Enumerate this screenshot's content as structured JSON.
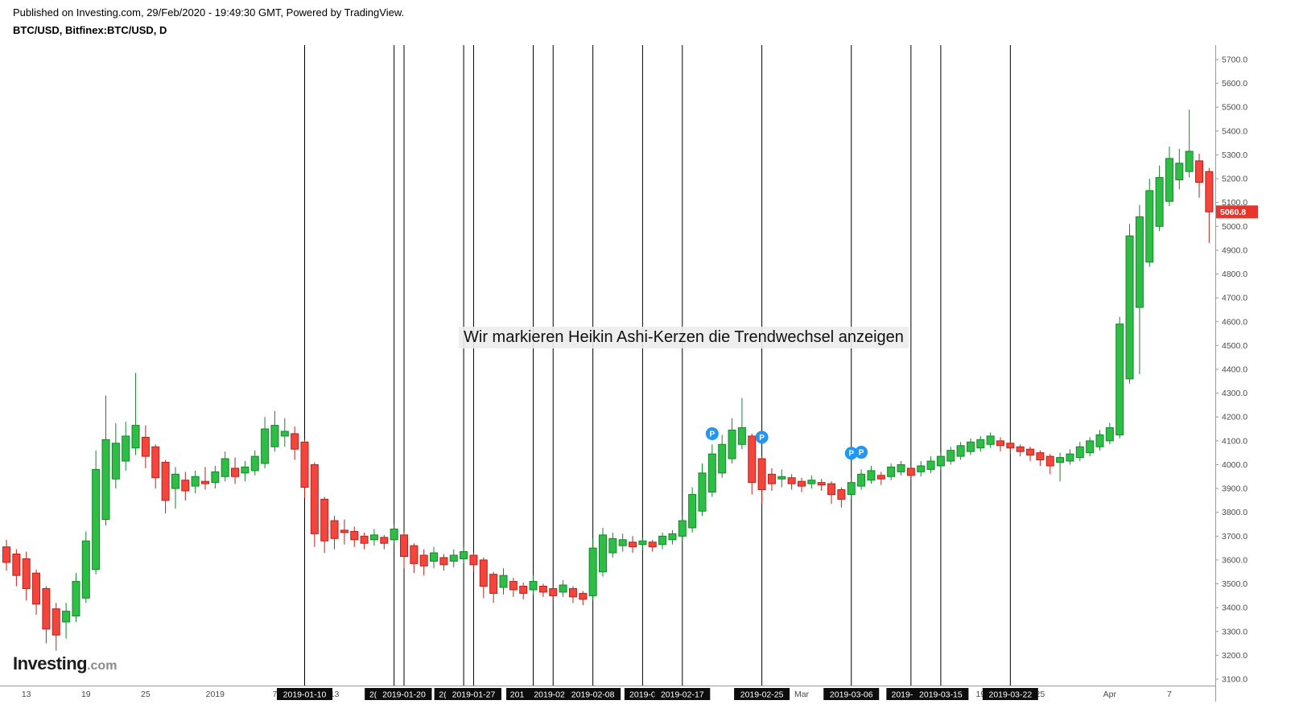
{
  "header": {
    "published_line": "Published on Investing.com, 29/Feb/2020 - 19:49:30 GMT, Powered by TradingView.",
    "symbol_line": "BTC/USD, Bitfinex:BTC/USD, D"
  },
  "annotation": {
    "text": "Wir markieren Heikin Ashi-Kerzen die Trendwechsel anzeigen"
  },
  "logo": {
    "brand": "Investing",
    "suffix": ".com"
  },
  "price_label": {
    "value": "5060.8",
    "color": "#e8342a"
  },
  "colors": {
    "up_fill": "#2ebd45",
    "up_border": "#13862b",
    "down_fill": "#f4453c",
    "down_border": "#b9211b",
    "trend_line": "#000000",
    "axis_text": "#4a4a4a",
    "axis_line": "#999999"
  },
  "chart_data": {
    "type": "candlestick",
    "style": "heikin-ashi",
    "title": "BTC/USD, Bitfinex:BTC/USD, D",
    "y_axis": {
      "min": 3100,
      "max": 5700,
      "step": 100,
      "side": "right"
    },
    "last_price": 5060.8,
    "marker_color": "#2196f3",
    "x_ticks": [
      {
        "i": 2,
        "label": "13"
      },
      {
        "i": 8,
        "label": "19"
      },
      {
        "i": 14,
        "label": "25"
      },
      {
        "i": 21,
        "label": "2019"
      },
      {
        "i": 27,
        "label": "7"
      },
      {
        "i": 33,
        "label": "13"
      },
      {
        "i": 80,
        "label": "Mar"
      },
      {
        "i": 98,
        "label": "19"
      },
      {
        "i": 104,
        "label": "25"
      },
      {
        "i": 111,
        "label": "Apr"
      },
      {
        "i": 117,
        "label": "7"
      }
    ],
    "trend_lines": [
      {
        "i": 30,
        "label": "2019-01-10"
      },
      {
        "i": 39,
        "label": "2(",
        "dx": -26
      },
      {
        "i": 40,
        "label": "2019-01-20"
      },
      {
        "i": 46,
        "label": "2(",
        "dx": -26
      },
      {
        "i": 47,
        "label": "2019-01-27"
      },
      {
        "i": 53,
        "label": "201",
        "dx": -20
      },
      {
        "i": 55,
        "label": "2019-02-0"
      },
      {
        "i": 59,
        "label": "2019-02-08"
      },
      {
        "i": 64,
        "label": "2019-0"
      },
      {
        "i": 68,
        "label": "2019-02-17"
      },
      {
        "i": 76,
        "label": "2019-02-25"
      },
      {
        "i": 85,
        "label": "2019-03-06"
      },
      {
        "i": 91,
        "label": "2019-0",
        "dx": -8
      },
      {
        "i": 94,
        "label": "2019-03-15"
      },
      {
        "i": 101,
        "label": "2019-03-22"
      }
    ],
    "p_markers": [
      {
        "i": 71,
        "price": 4130,
        "label": "P"
      },
      {
        "i": 76,
        "price": 4115,
        "label": "P"
      },
      {
        "i": 85,
        "price": 4048,
        "label": "P"
      },
      {
        "i": 86,
        "price": 4052,
        "label": "P"
      }
    ],
    "candles": [
      [
        "2018-12-11",
        3655,
        3685,
        3555,
        3590
      ],
      [
        "2018-12-12",
        3625,
        3645,
        3490,
        3535
      ],
      [
        "2018-12-13",
        3605,
        3635,
        3430,
        3480
      ],
      [
        "2018-12-14",
        3545,
        3560,
        3370,
        3415
      ],
      [
        "2018-12-15",
        3480,
        3490,
        3250,
        3310
      ],
      [
        "2018-12-16",
        3395,
        3420,
        3220,
        3285
      ],
      [
        "2018-12-17",
        3340,
        3420,
        3270,
        3385
      ],
      [
        "2018-12-18",
        3365,
        3545,
        3340,
        3510
      ],
      [
        "2018-12-19",
        3440,
        3720,
        3420,
        3680
      ],
      [
        "2018-12-20",
        3560,
        4060,
        3540,
        3980
      ],
      [
        "2018-12-21",
        3770,
        4290,
        3745,
        4105
      ],
      [
        "2018-12-22",
        3940,
        4175,
        3900,
        4090
      ],
      [
        "2018-12-23",
        4015,
        4180,
        3975,
        4120
      ],
      [
        "2018-12-24",
        4070,
        4385,
        4040,
        4165
      ],
      [
        "2018-12-25",
        4115,
        4165,
        3985,
        4035
      ],
      [
        "2018-12-26",
        4075,
        4085,
        3900,
        3945
      ],
      [
        "2018-12-27",
        4010,
        4020,
        3795,
        3850
      ],
      [
        "2018-12-28",
        3900,
        3990,
        3815,
        3960
      ],
      [
        "2018-12-29",
        3935,
        3970,
        3850,
        3890
      ],
      [
        "2018-12-30",
        3910,
        3975,
        3880,
        3950
      ],
      [
        "2018-12-31",
        3930,
        3990,
        3895,
        3920
      ],
      [
        "2019-01-01",
        3925,
        3995,
        3900,
        3970
      ],
      [
        "2019-01-02",
        3950,
        4055,
        3930,
        4025
      ],
      [
        "2019-01-03",
        3985,
        4030,
        3920,
        3950
      ],
      [
        "2019-01-04",
        3965,
        4015,
        3930,
        3990
      ],
      [
        "2019-01-05",
        3975,
        4060,
        3955,
        4035
      ],
      [
        "2019-01-06",
        4005,
        4200,
        3985,
        4150
      ],
      [
        "2019-01-07",
        4075,
        4225,
        4055,
        4165
      ],
      [
        "2019-01-08",
        4120,
        4195,
        4075,
        4140
      ],
      [
        "2019-01-09",
        4130,
        4160,
        4020,
        4065
      ],
      [
        "2019-01-10",
        4095,
        4105,
        3860,
        3905
      ],
      [
        "2019-01-11",
        4000,
        4010,
        3655,
        3710
      ],
      [
        "2019-01-12",
        3855,
        3865,
        3630,
        3680
      ],
      [
        "2019-01-13",
        3765,
        3785,
        3645,
        3690
      ],
      [
        "2019-01-14",
        3725,
        3770,
        3665,
        3715
      ],
      [
        "2019-01-15",
        3720,
        3740,
        3655,
        3685
      ],
      [
        "2019-01-16",
        3700,
        3715,
        3645,
        3670
      ],
      [
        "2019-01-17",
        3685,
        3730,
        3660,
        3705
      ],
      [
        "2019-01-18",
        3695,
        3705,
        3645,
        3670
      ],
      [
        "2019-01-19",
        3685,
        3750,
        3665,
        3730
      ],
      [
        "2019-01-20",
        3705,
        3715,
        3565,
        3615
      ],
      [
        "2019-01-21",
        3660,
        3670,
        3545,
        3585
      ],
      [
        "2019-01-22",
        3620,
        3645,
        3535,
        3575
      ],
      [
        "2019-01-23",
        3595,
        3655,
        3565,
        3630
      ],
      [
        "2019-01-24",
        3610,
        3625,
        3555,
        3580
      ],
      [
        "2019-01-25",
        3595,
        3645,
        3570,
        3620
      ],
      [
        "2019-01-26",
        3605,
        3655,
        3585,
        3635
      ],
      [
        "2019-01-27",
        3620,
        3630,
        3550,
        3580
      ],
      [
        "2019-01-28",
        3600,
        3610,
        3440,
        3490
      ],
      [
        "2019-01-29",
        3540,
        3550,
        3420,
        3460
      ],
      [
        "2019-01-30",
        3485,
        3565,
        3455,
        3535
      ],
      [
        "2019-01-31",
        3510,
        3525,
        3445,
        3475
      ],
      [
        "2019-02-01",
        3490,
        3505,
        3435,
        3460
      ],
      [
        "2019-02-02",
        3475,
        3535,
        3455,
        3510
      ],
      [
        "2019-02-03",
        3490,
        3500,
        3445,
        3465
      ],
      [
        "2019-02-04",
        3480,
        3490,
        3425,
        3450
      ],
      [
        "2019-02-05",
        3465,
        3515,
        3445,
        3495
      ],
      [
        "2019-02-06",
        3480,
        3490,
        3420,
        3445
      ],
      [
        "2019-02-07",
        3460,
        3470,
        3410,
        3435
      ],
      [
        "2019-02-08",
        3450,
        3690,
        3430,
        3650
      ],
      [
        "2019-02-09",
        3550,
        3735,
        3530,
        3705
      ],
      [
        "2019-02-10",
        3630,
        3715,
        3610,
        3690
      ],
      [
        "2019-02-11",
        3660,
        3710,
        3635,
        3685
      ],
      [
        "2019-02-12",
        3675,
        3700,
        3630,
        3655
      ],
      [
        "2019-02-13",
        3665,
        3695,
        3640,
        3680
      ],
      [
        "2019-02-14",
        3675,
        3685,
        3635,
        3655
      ],
      [
        "2019-02-15",
        3665,
        3715,
        3645,
        3700
      ],
      [
        "2019-02-16",
        3685,
        3725,
        3665,
        3710
      ],
      [
        "2019-02-17",
        3700,
        3785,
        3680,
        3765
      ],
      [
        "2019-02-18",
        3735,
        3905,
        3715,
        3875
      ],
      [
        "2019-02-19",
        3805,
        4005,
        3785,
        3965
      ],
      [
        "2019-02-20",
        3885,
        4085,
        3865,
        4045
      ],
      [
        "2019-02-21",
        3965,
        4125,
        3945,
        4085
      ],
      [
        "2019-02-22",
        4025,
        4195,
        4005,
        4145
      ],
      [
        "2019-02-23",
        4085,
        4280,
        4065,
        4155
      ],
      [
        "2019-02-24",
        4120,
        4130,
        3875,
        3925
      ],
      [
        "2019-02-25",
        4025,
        4035,
        3835,
        3895
      ],
      [
        "2019-02-26",
        3960,
        3985,
        3890,
        3920
      ],
      [
        "2019-02-27",
        3940,
        3980,
        3905,
        3950
      ],
      [
        "2019-02-28",
        3945,
        3960,
        3895,
        3920
      ],
      [
        "2019-03-01",
        3930,
        3945,
        3885,
        3910
      ],
      [
        "2019-03-02",
        3920,
        3955,
        3900,
        3935
      ],
      [
        "2019-03-03",
        3925,
        3940,
        3890,
        3915
      ],
      [
        "2019-03-04",
        3920,
        3930,
        3835,
        3875
      ],
      [
        "2019-03-05",
        3895,
        3905,
        3820,
        3855
      ],
      [
        "2019-03-06",
        3875,
        3945,
        3855,
        3925
      ],
      [
        "2019-03-07",
        3910,
        3980,
        3895,
        3960
      ],
      [
        "2019-03-08",
        3935,
        3995,
        3920,
        3975
      ],
      [
        "2019-03-09",
        3955,
        3970,
        3915,
        3940
      ],
      [
        "2019-03-10",
        3950,
        4005,
        3935,
        3990
      ],
      [
        "2019-03-11",
        3970,
        4015,
        3955,
        4000
      ],
      [
        "2019-03-12",
        3985,
        3995,
        3935,
        3955
      ],
      [
        "2019-03-13",
        3970,
        4015,
        3950,
        3995
      ],
      [
        "2019-03-14",
        3980,
        4035,
        3965,
        4015
      ],
      [
        "2019-03-15",
        3995,
        4050,
        3980,
        4035
      ],
      [
        "2019-03-16",
        4015,
        4075,
        4000,
        4060
      ],
      [
        "2019-03-17",
        4035,
        4095,
        4020,
        4080
      ],
      [
        "2019-03-18",
        4055,
        4110,
        4040,
        4095
      ],
      [
        "2019-03-19",
        4070,
        4120,
        4055,
        4105
      ],
      [
        "2019-03-20",
        4085,
        4135,
        4070,
        4120
      ],
      [
        "2019-03-21",
        4100,
        4115,
        4055,
        4080
      ],
      [
        "2019-03-22",
        4090,
        4100,
        4045,
        4070
      ],
      [
        "2019-03-23",
        4075,
        4085,
        4035,
        4055
      ],
      [
        "2019-03-24",
        4065,
        4075,
        4015,
        4040
      ],
      [
        "2019-03-25",
        4050,
        4060,
        3995,
        4020
      ],
      [
        "2019-03-26",
        4035,
        4045,
        3960,
        3995
      ],
      [
        "2019-03-27",
        4010,
        4050,
        3930,
        4030
      ],
      [
        "2019-03-28",
        4015,
        4065,
        4000,
        4045
      ],
      [
        "2019-03-29",
        4030,
        4095,
        4015,
        4075
      ],
      [
        "2019-03-30",
        4050,
        4115,
        4035,
        4100
      ],
      [
        "2019-03-31",
        4075,
        4145,
        4060,
        4125
      ],
      [
        "2019-04-01",
        4100,
        4175,
        4085,
        4155
      ],
      [
        "2019-04-02",
        4125,
        4620,
        4110,
        4590
      ],
      [
        "2019-04-03",
        4360,
        5010,
        4340,
        4960
      ],
      [
        "2019-04-04",
        4660,
        5090,
        4380,
        5040
      ],
      [
        "2019-04-05",
        4850,
        5200,
        4830,
        5150
      ],
      [
        "2019-04-06",
        5000,
        5255,
        4980,
        5205
      ],
      [
        "2019-04-07",
        5105,
        5335,
        5085,
        5285
      ],
      [
        "2019-04-08",
        5195,
        5325,
        5155,
        5265
      ],
      [
        "2019-04-09",
        5230,
        5490,
        5205,
        5315
      ],
      [
        "2019-04-10",
        5275,
        5305,
        5120,
        5185
      ],
      [
        "2019-04-11",
        5230,
        5245,
        4930,
        5060.8
      ]
    ]
  }
}
